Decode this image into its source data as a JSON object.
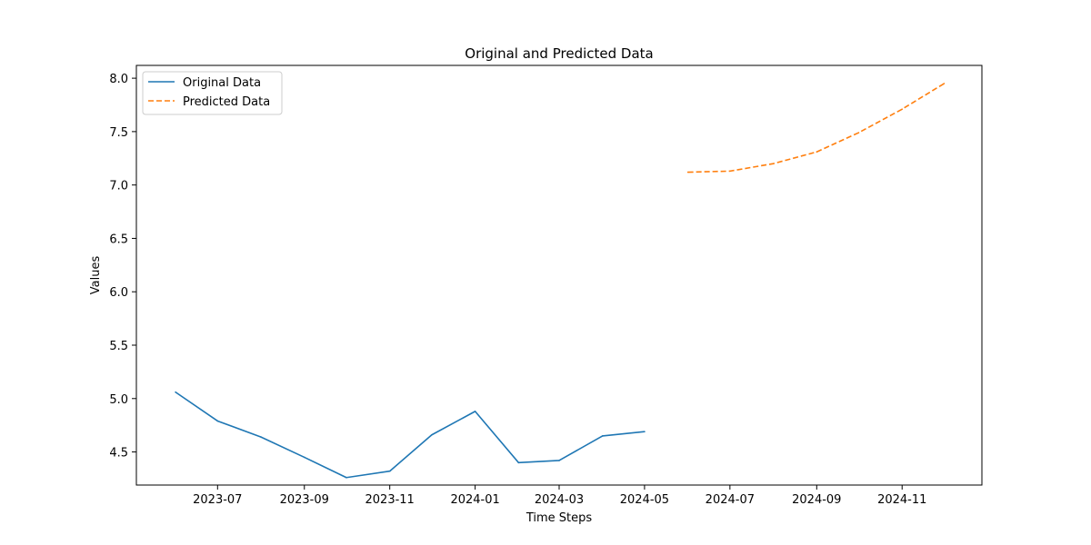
{
  "chart_data": {
    "type": "line",
    "title": "Original and Predicted Data",
    "xlabel": "Time Steps",
    "ylabel": "Values",
    "xlim": [
      "2023-05-04",
      "2024-12-28"
    ],
    "ylim": [
      4.19,
      8.12
    ],
    "grid": false,
    "legend_position": "top-left",
    "x_ticks": [
      {
        "date": "2023-07-01",
        "label": "2023-07"
      },
      {
        "date": "2023-09-01",
        "label": "2023-09"
      },
      {
        "date": "2023-11-01",
        "label": "2023-11"
      },
      {
        "date": "2024-01-01",
        "label": "2024-01"
      },
      {
        "date": "2024-03-01",
        "label": "2024-03"
      },
      {
        "date": "2024-05-01",
        "label": "2024-05"
      },
      {
        "date": "2024-07-01",
        "label": "2024-07"
      },
      {
        "date": "2024-09-01",
        "label": "2024-09"
      },
      {
        "date": "2024-11-01",
        "label": "2024-11"
      }
    ],
    "y_ticks": [
      {
        "value": 4.5,
        "label": "4.5"
      },
      {
        "value": 5.0,
        "label": "5.0"
      },
      {
        "value": 5.5,
        "label": "5.5"
      },
      {
        "value": 6.0,
        "label": "6.0"
      },
      {
        "value": 6.5,
        "label": "6.5"
      },
      {
        "value": 7.0,
        "label": "7.0"
      },
      {
        "value": 7.5,
        "label": "7.5"
      },
      {
        "value": 8.0,
        "label": "8.0"
      }
    ],
    "series": [
      {
        "name": "Original Data",
        "color": "#1f77b4",
        "style": "solid",
        "x": [
          "2023-06-01",
          "2023-07-01",
          "2023-08-01",
          "2023-09-01",
          "2023-10-01",
          "2023-11-01",
          "2023-12-01",
          "2024-01-01",
          "2024-02-01",
          "2024-03-01",
          "2024-04-01",
          "2024-05-01"
        ],
        "y": [
          5.06,
          4.79,
          4.64,
          4.45,
          4.26,
          4.32,
          4.66,
          4.88,
          4.4,
          4.42,
          4.65,
          4.69
        ]
      },
      {
        "name": "Predicted Data",
        "color": "#ff7f0e",
        "style": "dashed",
        "x": [
          "2024-06-01",
          "2024-07-01",
          "2024-08-01",
          "2024-09-01",
          "2024-10-01",
          "2024-11-01",
          "2024-12-01"
        ],
        "y": [
          7.12,
          7.13,
          7.2,
          7.31,
          7.49,
          7.71,
          7.95
        ]
      }
    ]
  }
}
